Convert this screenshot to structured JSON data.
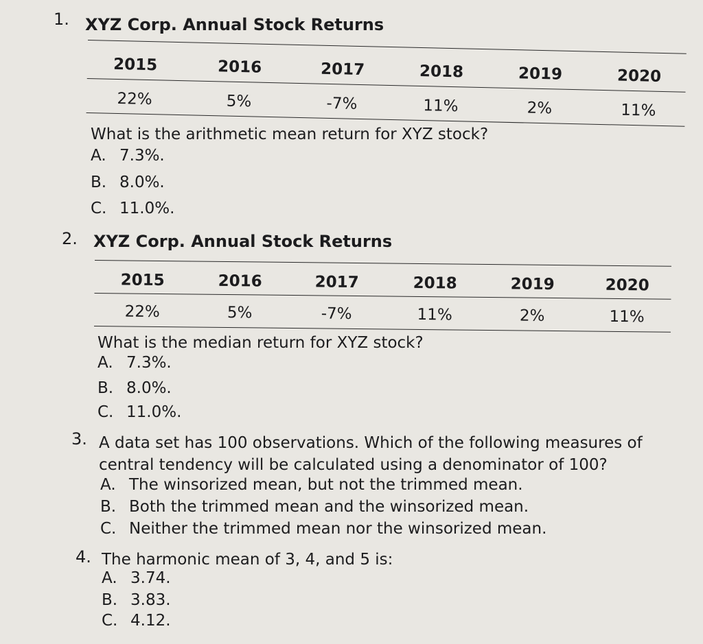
{
  "questions": [
    {
      "number": "1.",
      "title": "XYZ Corp. Annual Stock Returns",
      "table": {
        "years": [
          "2015",
          "2016",
          "2017",
          "2018",
          "2019",
          "2020"
        ],
        "returns": [
          "22%",
          "5%",
          "-7%",
          "11%",
          "2%",
          "11%"
        ]
      },
      "stem": "What is the arithmetic mean return for XYZ stock?",
      "choices": [
        {
          "letter": "A.",
          "text": "7.3%."
        },
        {
          "letter": "B.",
          "text": "8.0%."
        },
        {
          "letter": "C.",
          "text": "11.0%."
        }
      ]
    },
    {
      "number": "2.",
      "title": "XYZ Corp. Annual Stock Returns",
      "table": {
        "years": [
          "2015",
          "2016",
          "2017",
          "2018",
          "2019",
          "2020"
        ],
        "returns": [
          "22%",
          "5%",
          "-7%",
          "11%",
          "2%",
          "11%"
        ]
      },
      "stem": "What is the median return for XYZ stock?",
      "choices": [
        {
          "letter": "A.",
          "text": "7.3%."
        },
        {
          "letter": "B.",
          "text": "8.0%."
        },
        {
          "letter": "C.",
          "text": "11.0%."
        }
      ]
    },
    {
      "number": "3.",
      "stem_line1": "A data set has 100 observations. Which of the following measures of",
      "stem_line2": "central tendency will be calculated using a denominator of 100?",
      "choices": [
        {
          "letter": "A.",
          "text": "The winsorized mean, but not the trimmed mean."
        },
        {
          "letter": "B.",
          "text": "Both the trimmed mean and the winsorized mean."
        },
        {
          "letter": "C.",
          "text": "Neither the trimmed mean nor the winsorized mean."
        }
      ]
    },
    {
      "number": "4.",
      "stem": "The harmonic mean of 3, 4, and 5 is:",
      "choices": [
        {
          "letter": "A.",
          "text": "3.74."
        },
        {
          "letter": "B.",
          "text": "3.83."
        },
        {
          "letter": "C.",
          "text": "4.12."
        }
      ]
    }
  ]
}
